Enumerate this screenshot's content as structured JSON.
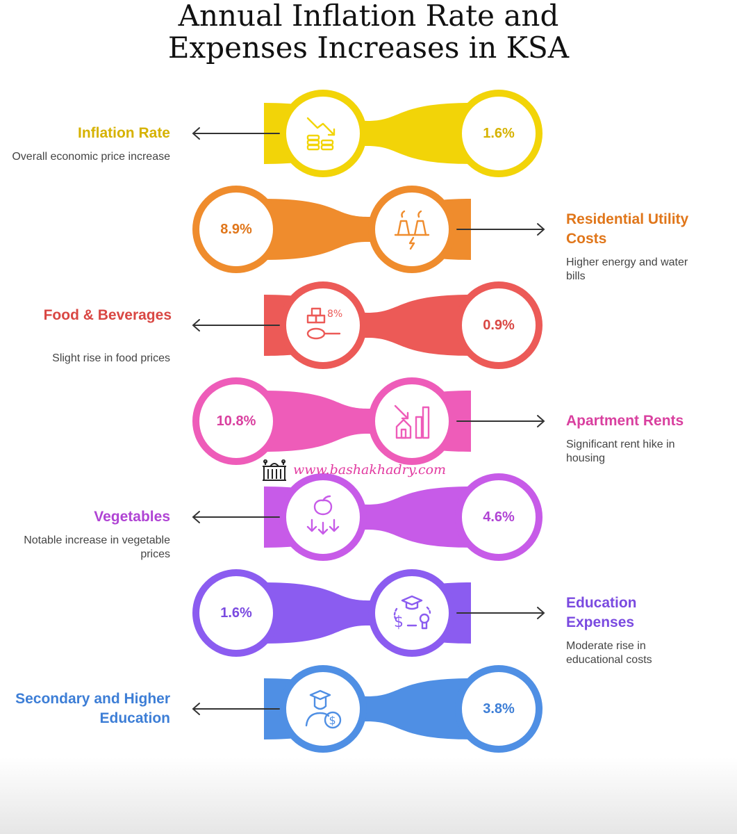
{
  "title": {
    "line1": "Annual Inflation Rate and",
    "line2": "Expenses Increases in KSA"
  },
  "watermark": {
    "text": "www.bashakhadry.com",
    "color": "#e23aa0"
  },
  "items": [
    {
      "label": "Inflation Rate",
      "description": "Overall economic price increase",
      "value": "1.6%",
      "color": "#f2d408",
      "text_color": "#d6b200",
      "side": "left",
      "icon": "falling-coins-icon"
    },
    {
      "label": "Residential Utility Costs",
      "description": "Higher energy and water bills",
      "value": "8.9%",
      "color": "#ef8c2d",
      "text_color": "#e0761a",
      "side": "right",
      "icon": "power-plant-icon"
    },
    {
      "label": "Food & Beverages",
      "description": "Slight rise in food prices",
      "value": "0.9%",
      "color": "#ec5a57",
      "text_color": "#d94743",
      "side": "left",
      "icon": "food-percent-icon"
    },
    {
      "label": "Apartment Rents",
      "description": "Significant rent hike in housing",
      "value": "10.8%",
      "color": "#ee5cb9",
      "text_color": "#d9409f",
      "side": "right",
      "icon": "house-chart-icon"
    },
    {
      "label": "Vegetables",
      "description": "Notable increase in vegetable prices",
      "value": "4.6%",
      "color": "#c75be8",
      "text_color": "#b044d4",
      "side": "left",
      "icon": "vegetable-down-icon"
    },
    {
      "label": "Education Expenses",
      "description": "Moderate rise in educational costs",
      "value": "1.6%",
      "color": "#8b5cf0",
      "text_color": "#7a4ae0",
      "side": "right",
      "icon": "graduation-cost-icon"
    },
    {
      "label": "Secondary and Higher Education",
      "description": "",
      "value": "3.8%",
      "color": "#4f8fe4",
      "text_color": "#3d7ed6",
      "side": "left",
      "icon": "graduate-money-icon"
    }
  ]
}
